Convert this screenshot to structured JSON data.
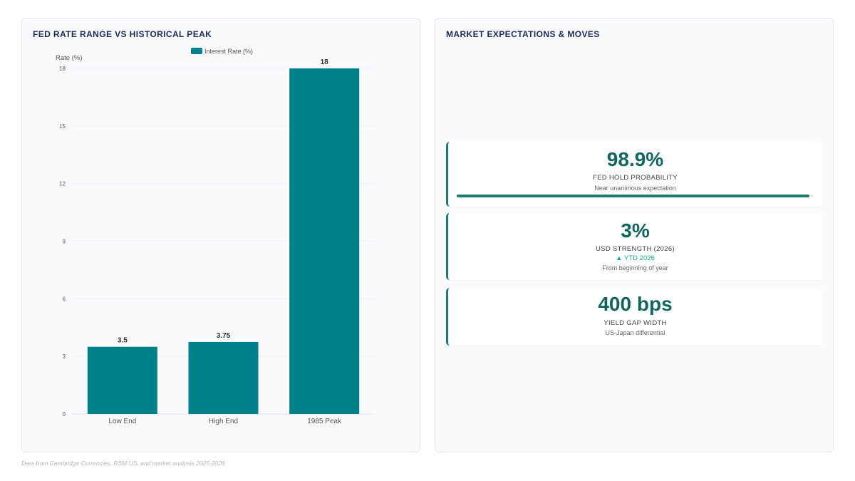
{
  "left_panel": {
    "title": "FED RATE RANGE VS HISTORICAL PEAK"
  },
  "chart_data": {
    "type": "bar",
    "categories": [
      "Low End",
      "High End",
      "1985 Peak"
    ],
    "series": [
      {
        "name": "Interest Rate (%)",
        "values": [
          3.5,
          3.75,
          18
        ]
      }
    ],
    "data_labels": [
      "3.5",
      "3.75",
      "18"
    ],
    "ylabel": "Rate (%)",
    "xlabel": "",
    "ylim": [
      0,
      18
    ],
    "yticks": [
      0,
      3,
      6,
      9,
      12,
      15,
      18
    ],
    "grid": true,
    "legend_position": "top",
    "bar_color": "#00808a"
  },
  "right_panel": {
    "title": "MARKET EXPECTATIONS & MOVES",
    "cards": [
      {
        "value": "98.9%",
        "label": "FED HOLD PROBABILITY",
        "sub": "Near unanimous expectation",
        "progress": 0.989
      },
      {
        "value": "3%",
        "label": "USD STRENGTH (2026)",
        "trend": "▲ YTD 2026",
        "sub": "From beginning of year"
      },
      {
        "value": "400 bps",
        "label": "YIELD GAP WIDTH",
        "sub": "US-Japan differential"
      }
    ]
  },
  "footnote": "Data from Cambridge Currencies, RSM US, and market analysis 2025-2026",
  "colors": {
    "accent": "#1b7a78",
    "value_text": "#11675f",
    "title_text": "#1f2a5c",
    "trend_up": "#1aaa8a"
  }
}
